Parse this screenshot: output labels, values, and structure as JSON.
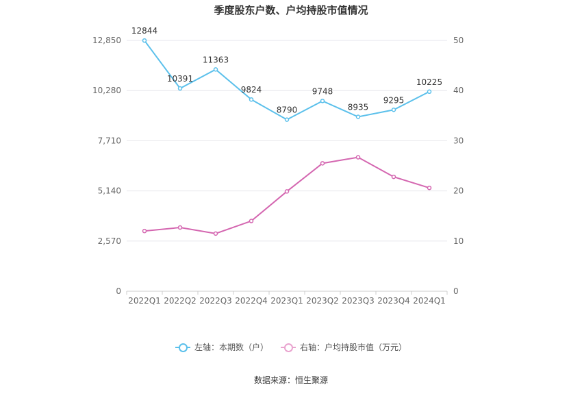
{
  "chart_data": {
    "type": "line",
    "title": "季度股东户数、户均持股市值情况",
    "categories": [
      "2022Q1",
      "2022Q2",
      "2022Q3",
      "2022Q4",
      "2023Q1",
      "2023Q2",
      "2023Q3",
      "2023Q4",
      "2024Q1"
    ],
    "left_axis": {
      "ticks": [
        0,
        2570,
        5140,
        7710,
        10280,
        12850
      ],
      "tick_labels": [
        "0",
        "2,570",
        "5,140",
        "7,710",
        "10,280",
        "12,850"
      ],
      "ylim": [
        0,
        12850
      ]
    },
    "right_axis": {
      "ticks": [
        0,
        10,
        20,
        30,
        40,
        50
      ],
      "tick_labels": [
        "0",
        "10",
        "20",
        "30",
        "40",
        "50"
      ],
      "ylim": [
        0,
        50
      ]
    },
    "grid": true,
    "legend_position": "bottom",
    "series": [
      {
        "name": "左轴：本期数（户）",
        "axis": "left",
        "color": "#5bc0eb",
        "values": [
          12844,
          10391,
          11363,
          9824,
          8790,
          9748,
          8935,
          9295,
          10225
        ],
        "data_labels": [
          "12844",
          "10391",
          "11363",
          "9824",
          "8790",
          "9748",
          "8935",
          "9295",
          "10225"
        ]
      },
      {
        "name": "右轴：户均持股市值（万元）",
        "axis": "right",
        "color": "#d466b0",
        "values": [
          12.0,
          12.7,
          11.5,
          14.0,
          19.9,
          25.5,
          26.7,
          22.8,
          20.6
        ]
      }
    ]
  },
  "legend_items": [
    {
      "label": "左轴：本期数（户）",
      "color": "#5bc0eb"
    },
    {
      "label": "右轴：户均持股市值（万元）",
      "color": "#e9a3cf"
    }
  ],
  "source_text": "数据来源：恒生聚源"
}
